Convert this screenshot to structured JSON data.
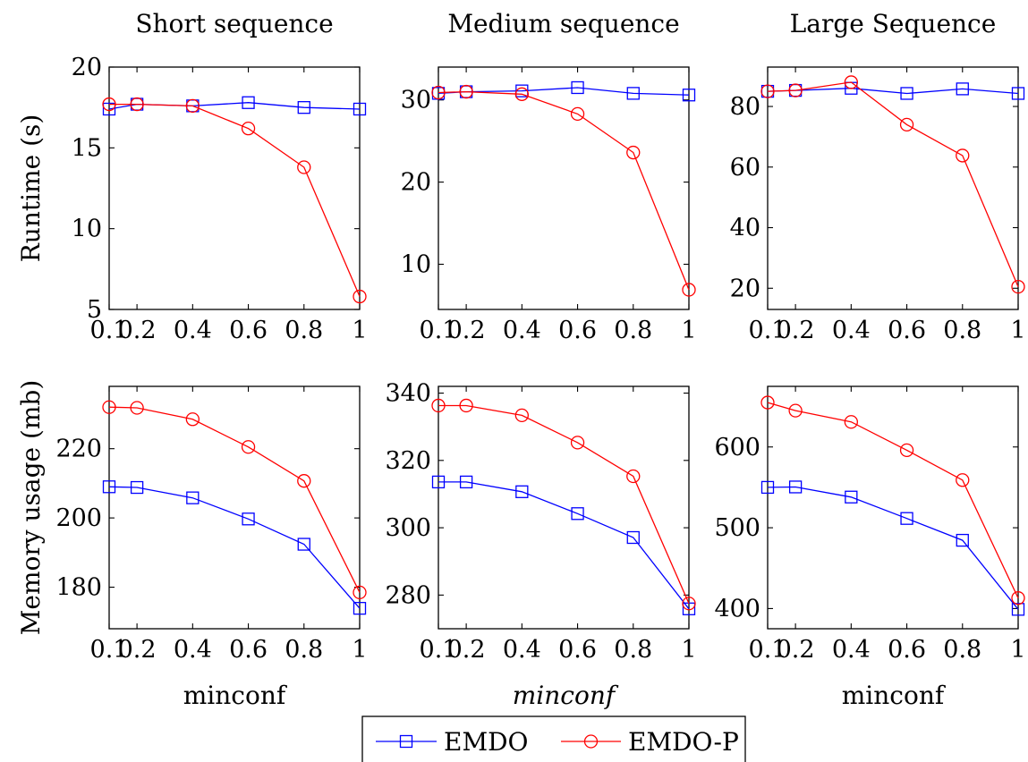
{
  "chart_data": [
    {
      "type": "line",
      "title": "Short sequence",
      "ylabel": "Runtime (s)",
      "xlabel": "",
      "xlim": [
        0.1,
        1
      ],
      "ylim": [
        5,
        20
      ],
      "xticks": [
        0.1,
        0.2,
        0.4,
        0.6,
        0.8,
        1
      ],
      "xtick_labels": [
        "0.1",
        "0.2",
        "0.4",
        "0.6",
        "0.8",
        "1"
      ],
      "yticks": [
        5,
        10,
        15,
        20
      ],
      "ytick_labels": [
        "5",
        "10",
        "15",
        "20"
      ],
      "x": [
        0.1,
        0.2,
        0.4,
        0.6,
        0.8,
        1
      ],
      "series": [
        {
          "name": "EMDO",
          "values": [
            17.4,
            17.7,
            17.6,
            17.8,
            17.5,
            17.4
          ]
        },
        {
          "name": "EMDO-P",
          "values": [
            17.7,
            17.7,
            17.6,
            16.2,
            13.8,
            5.8
          ]
        }
      ]
    },
    {
      "type": "line",
      "title": "Medium sequence",
      "ylabel": "",
      "xlabel": "",
      "xlim": [
        0.1,
        1
      ],
      "ylim": [
        4.5,
        34
      ],
      "xticks": [
        0.1,
        0.2,
        0.4,
        0.6,
        0.8,
        1
      ],
      "xtick_labels": [
        "0.1",
        "0.2",
        "0.4",
        "0.6",
        "0.8",
        "1"
      ],
      "yticks": [
        10,
        20,
        30
      ],
      "ytick_labels": [
        "10",
        "20",
        "30"
      ],
      "x": [
        0.1,
        0.2,
        0.4,
        0.6,
        0.8,
        1
      ],
      "series": [
        {
          "name": "EMDO",
          "values": [
            30.8,
            31.0,
            31.1,
            31.5,
            30.8,
            30.6
          ]
        },
        {
          "name": "EMDO-P",
          "values": [
            30.9,
            31.0,
            30.7,
            28.3,
            23.6,
            6.9
          ]
        }
      ]
    },
    {
      "type": "line",
      "title": "Large Sequence",
      "ylabel": "",
      "xlabel": "",
      "xlim": [
        0.1,
        1
      ],
      "ylim": [
        13,
        93
      ],
      "xticks": [
        0.1,
        0.2,
        0.4,
        0.6,
        0.8,
        1
      ],
      "xtick_labels": [
        "0.1",
        "0.2",
        "0.4",
        "0.6",
        "0.8",
        "1"
      ],
      "yticks": [
        20,
        40,
        60,
        80
      ],
      "ytick_labels": [
        "20",
        "40",
        "60",
        "80"
      ],
      "x": [
        0.1,
        0.2,
        0.4,
        0.6,
        0.8,
        1
      ],
      "series": [
        {
          "name": "EMDO",
          "values": [
            85.0,
            85.3,
            86.0,
            84.3,
            85.8,
            84.3
          ]
        },
        {
          "name": "EMDO-P",
          "values": [
            85.0,
            85.3,
            88.0,
            74.0,
            63.8,
            20.5
          ]
        }
      ]
    },
    {
      "type": "line",
      "title": "",
      "ylabel": "Memory usage (mb)",
      "xlabel": "minconf",
      "xlim": [
        0.1,
        1
      ],
      "ylim": [
        168,
        238
      ],
      "xticks": [
        0.1,
        0.2,
        0.4,
        0.6,
        0.8,
        1
      ],
      "xtick_labels": [
        "0.1",
        "0.2",
        "0.4",
        "0.6",
        "0.8",
        "1"
      ],
      "yticks": [
        180,
        200,
        220
      ],
      "ytick_labels": [
        "180",
        "200",
        "220"
      ],
      "x": [
        0.1,
        0.2,
        0.4,
        0.6,
        0.8,
        1
      ],
      "series": [
        {
          "name": "EMDO",
          "values": [
            209,
            208.8,
            205.8,
            199.7,
            192.4,
            173.9
          ]
        },
        {
          "name": "EMDO-P",
          "values": [
            232,
            231.8,
            228.5,
            220.5,
            210.7,
            178.5
          ]
        }
      ]
    },
    {
      "type": "line",
      "title": "",
      "ylabel": "",
      "xlabel": "minconf",
      "xlim": [
        0.1,
        1
      ],
      "ylim": [
        270,
        342
      ],
      "xticks": [
        0.1,
        0.2,
        0.4,
        0.6,
        0.8,
        1
      ],
      "xtick_labels": [
        "0.1",
        "0.2",
        "0.4",
        "0.6",
        "0.8",
        "1"
      ],
      "yticks": [
        280,
        300,
        320,
        340
      ],
      "ytick_labels": [
        "280",
        "300",
        "320",
        "340"
      ],
      "x": [
        0.1,
        0.2,
        0.4,
        0.6,
        0.8,
        1
      ],
      "series": [
        {
          "name": "EMDO",
          "values": [
            313.6,
            313.6,
            310.7,
            304.2,
            297.1,
            275.9
          ]
        },
        {
          "name": "EMDO-P",
          "values": [
            336.3,
            336.3,
            333.4,
            325.3,
            315.3,
            277.5
          ]
        }
      ]
    },
    {
      "type": "line",
      "title": "",
      "ylabel": "",
      "xlabel": "minconf",
      "xlim": [
        0.1,
        1
      ],
      "ylim": [
        375,
        675
      ],
      "xticks": [
        0.1,
        0.2,
        0.4,
        0.6,
        0.8,
        1
      ],
      "xtick_labels": [
        "0.1",
        "0.2",
        "0.4",
        "0.6",
        "0.8",
        "1"
      ],
      "yticks": [
        400,
        500,
        600
      ],
      "ytick_labels": [
        "400",
        "500",
        "600"
      ],
      "x": [
        0.1,
        0.2,
        0.4,
        0.6,
        0.8,
        1
      ],
      "series": [
        {
          "name": "EMDO",
          "values": [
            550,
            550.5,
            538,
            511.5,
            484.5,
            399
          ]
        },
        {
          "name": "EMDO-P",
          "values": [
            655,
            645,
            631,
            596,
            559,
            413
          ]
        }
      ]
    }
  ],
  "legend": {
    "placement": "bottom-center",
    "items": [
      {
        "label": "EMDO",
        "color": "#0000ff",
        "marker": "square"
      },
      {
        "label": "EMDO-P",
        "color": "#ff0000",
        "marker": "circle"
      }
    ]
  }
}
